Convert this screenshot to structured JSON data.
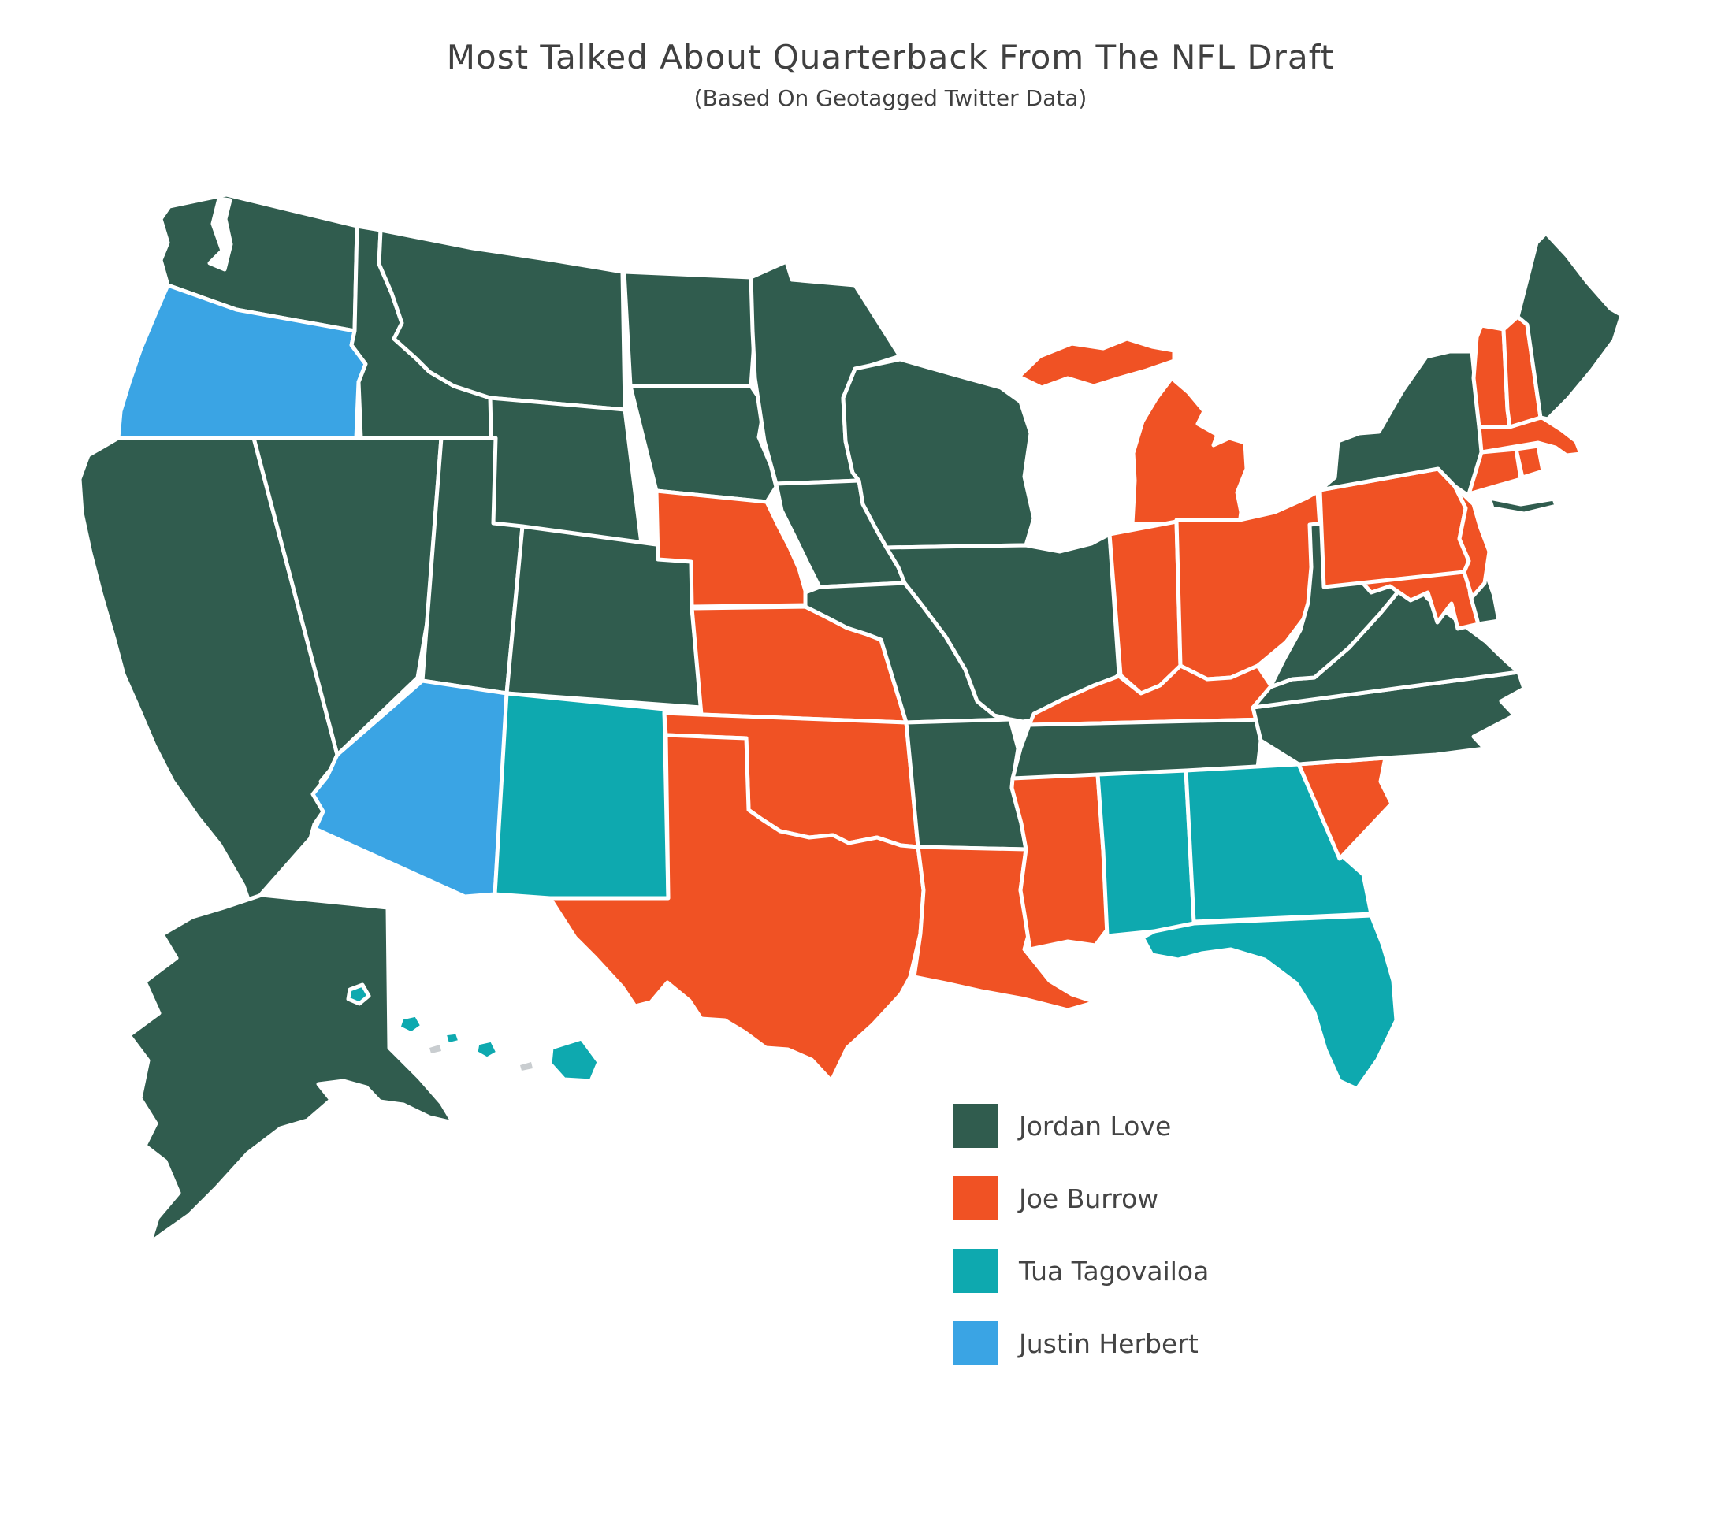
{
  "title": "Most Talked About Quarterback From The NFL Draft",
  "subtitle": "(Based On Geotagged Twitter Data)",
  "chart_data": {
    "type": "choropleth",
    "region": "USA states",
    "title": "Most Talked About Quarterback From The NFL Draft",
    "subtitle": "(Based On Geotagged Twitter Data)",
    "legend_position": "bottom-center",
    "legend": [
      {
        "label": "Jordan Love",
        "color": "#305C4E"
      },
      {
        "label": "Joe Burrow",
        "color": "#F05224"
      },
      {
        "label": "Tua Tagovailoa",
        "color": "#0EA9AF"
      },
      {
        "label": "Justin Herbert",
        "color": "#3AA4E4"
      }
    ],
    "states": [
      {
        "abbr": "WA",
        "name": "Washington",
        "value": "Jordan Love"
      },
      {
        "abbr": "OR",
        "name": "Oregon",
        "value": "Justin Herbert"
      },
      {
        "abbr": "CA",
        "name": "California",
        "value": "Jordan Love"
      },
      {
        "abbr": "NV",
        "name": "Nevada",
        "value": "Jordan Love"
      },
      {
        "abbr": "ID",
        "name": "Idaho",
        "value": "Jordan Love"
      },
      {
        "abbr": "MT",
        "name": "Montana",
        "value": "Jordan Love"
      },
      {
        "abbr": "WY",
        "name": "Wyoming",
        "value": "Jordan Love"
      },
      {
        "abbr": "UT",
        "name": "Utah",
        "value": "Jordan Love"
      },
      {
        "abbr": "CO",
        "name": "Colorado",
        "value": "Jordan Love"
      },
      {
        "abbr": "AZ",
        "name": "Arizona",
        "value": "Justin Herbert"
      },
      {
        "abbr": "NM",
        "name": "New Mexico",
        "value": "Tua Tagovailoa"
      },
      {
        "abbr": "ND",
        "name": "North Dakota",
        "value": "Jordan Love"
      },
      {
        "abbr": "SD",
        "name": "South Dakota",
        "value": "Jordan Love"
      },
      {
        "abbr": "NE",
        "name": "Nebraska",
        "value": "Joe Burrow"
      },
      {
        "abbr": "KS",
        "name": "Kansas",
        "value": "Joe Burrow"
      },
      {
        "abbr": "OK",
        "name": "Oklahoma",
        "value": "Joe Burrow"
      },
      {
        "abbr": "TX",
        "name": "Texas",
        "value": "Joe Burrow"
      },
      {
        "abbr": "MN",
        "name": "Minnesota",
        "value": "Jordan Love"
      },
      {
        "abbr": "IA",
        "name": "Iowa",
        "value": "Jordan Love"
      },
      {
        "abbr": "MO",
        "name": "Missouri",
        "value": "Jordan Love"
      },
      {
        "abbr": "AR",
        "name": "Arkansas",
        "value": "Jordan Love"
      },
      {
        "abbr": "LA",
        "name": "Louisiana",
        "value": "Joe Burrow"
      },
      {
        "abbr": "WI",
        "name": "Wisconsin",
        "value": "Jordan Love"
      },
      {
        "abbr": "IL",
        "name": "Illinois",
        "value": "Jordan Love"
      },
      {
        "abbr": "MI",
        "name": "Michigan",
        "value": "Joe Burrow"
      },
      {
        "abbr": "IN",
        "name": "Indiana",
        "value": "Joe Burrow"
      },
      {
        "abbr": "OH",
        "name": "Ohio",
        "value": "Joe Burrow"
      },
      {
        "abbr": "KY",
        "name": "Kentucky",
        "value": "Joe Burrow"
      },
      {
        "abbr": "TN",
        "name": "Tennessee",
        "value": "Jordan Love"
      },
      {
        "abbr": "MS",
        "name": "Mississippi",
        "value": "Joe Burrow"
      },
      {
        "abbr": "AL",
        "name": "Alabama",
        "value": "Tua Tagovailoa"
      },
      {
        "abbr": "GA",
        "name": "Georgia",
        "value": "Tua Tagovailoa"
      },
      {
        "abbr": "FL",
        "name": "Florida",
        "value": "Tua Tagovailoa"
      },
      {
        "abbr": "SC",
        "name": "South Carolina",
        "value": "Joe Burrow"
      },
      {
        "abbr": "NC",
        "name": "North Carolina",
        "value": "Jordan Love"
      },
      {
        "abbr": "VA",
        "name": "Virginia",
        "value": "Jordan Love"
      },
      {
        "abbr": "WV",
        "name": "West Virginia",
        "value": "Jordan Love"
      },
      {
        "abbr": "MD",
        "name": "Maryland",
        "value": "Joe Burrow"
      },
      {
        "abbr": "DE",
        "name": "Delaware",
        "value": "Jordan Love"
      },
      {
        "abbr": "PA",
        "name": "Pennsylvania",
        "value": "Joe Burrow"
      },
      {
        "abbr": "NJ",
        "name": "New Jersey",
        "value": "Joe Burrow"
      },
      {
        "abbr": "NY",
        "name": "New York",
        "value": "Jordan Love"
      },
      {
        "abbr": "CT",
        "name": "Connecticut",
        "value": "Joe Burrow"
      },
      {
        "abbr": "RI",
        "name": "Rhode Island",
        "value": "Joe Burrow"
      },
      {
        "abbr": "MA",
        "name": "Massachusetts",
        "value": "Joe Burrow"
      },
      {
        "abbr": "VT",
        "name": "Vermont",
        "value": "Joe Burrow"
      },
      {
        "abbr": "NH",
        "name": "New Hampshire",
        "value": "Joe Burrow"
      },
      {
        "abbr": "ME",
        "name": "Maine",
        "value": "Jordan Love"
      },
      {
        "abbr": "AK",
        "name": "Alaska",
        "value": "Jordan Love"
      },
      {
        "abbr": "HI",
        "name": "Hawaii",
        "value": "Tua Tagovailoa"
      }
    ]
  },
  "style": {
    "background": "#ffffff",
    "state_border_color": "#ffffff",
    "title_color": "#404040",
    "legend_text_color": "#444444",
    "minor_island_color": "#c9cdd0"
  }
}
